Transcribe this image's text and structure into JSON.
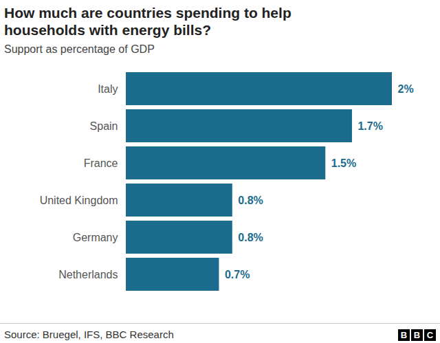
{
  "chart_data": {
    "type": "bar",
    "title": "How much are countries spending to help households with energy bills?",
    "subtitle": "Support as percentage of GDP",
    "source": "Source: Bruegel, IFS, BBC Research",
    "logo": "BBC",
    "categories": [
      "Italy",
      "Spain",
      "France",
      "United Kingdom",
      "Germany",
      "Netherlands"
    ],
    "values": [
      2,
      1.7,
      1.5,
      0.8,
      0.8,
      0.7
    ],
    "value_labels": [
      "2%",
      "1.7%",
      "1.5%",
      "0.8%",
      "0.8%",
      "0.7%"
    ],
    "color": "#1a6b8c",
    "orientation": "horizontal",
    "data_labels": true,
    "tick_labels": "y",
    "grid": false
  }
}
